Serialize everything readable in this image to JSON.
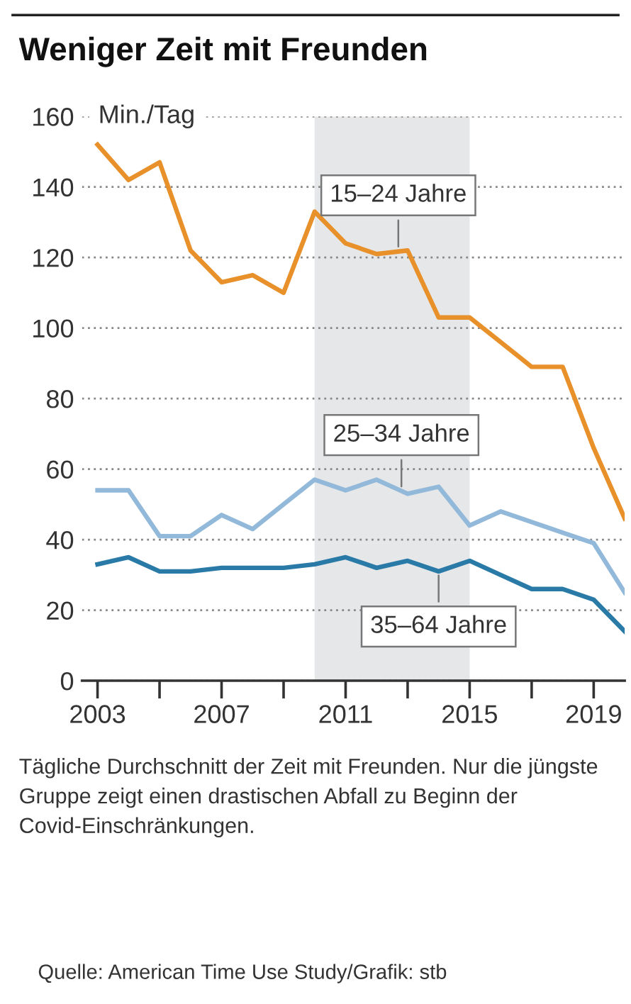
{
  "chart_data": {
    "type": "line",
    "title": "Weniger Zeit mit Freunden",
    "ylabel": "Min./Tag",
    "x": [
      2003,
      2004,
      2005,
      2006,
      2007,
      2008,
      2009,
      2010,
      2011,
      2012,
      2013,
      2014,
      2015,
      2016,
      2017,
      2018,
      2019,
      2020
    ],
    "series": [
      {
        "color": "#e8902a",
        "values": [
          152,
          142,
          147,
          122,
          113,
          115,
          110,
          133,
          124,
          121,
          122,
          103,
          103,
          96,
          89,
          89,
          66,
          46
        ]
      },
      {
        "color": "#92b9d9",
        "values": [
          54,
          54,
          41,
          41,
          47,
          43,
          50,
          57,
          54,
          57,
          53,
          55,
          44,
          48,
          45,
          42,
          39,
          25
        ]
      },
      {
        "color": "#2a7aa8",
        "values": [
          33,
          35,
          31,
          31,
          32,
          32,
          32,
          33,
          35,
          32,
          34,
          31,
          34,
          30,
          26,
          26,
          23,
          14
        ]
      }
    ],
    "xlim": [
      2002.5,
      2020
    ],
    "xticks": [
      2003,
      {
        "value": 2005,
        "label": null
      },
      2007,
      {
        "value": 2009,
        "label": null
      },
      2011,
      {
        "value": 2013,
        "label": null
      },
      2015,
      {
        "value": 2017,
        "label": null
      },
      2019
    ],
    "ylim": [
      0,
      160
    ],
    "yticks": [
      0,
      20,
      40,
      60,
      80,
      100,
      120,
      140,
      160
    ],
    "grid": "y",
    "marker": "none",
    "line_style": "solid",
    "bands": [
      {
        "axis": "x",
        "from": 2010,
        "to": 2015,
        "color": "#e6e7e9"
      }
    ],
    "annotations": [
      {
        "text": "15–24 Jahre",
        "x": 2012.7,
        "y": 122
      },
      {
        "text": "25–34 Jahre",
        "x": 2012.8,
        "y": 54
      },
      {
        "text": "35–64 Jahre",
        "x": 2014,
        "y": 31
      },
      "Tägliche Durchschnitt der Zeit mit Freunden. Nur die jüngste Gruppe zeigt einen drastischen Abfall zu Beginn der Covid-Einschränkungen.",
      "Quelle: American Time Use Study/Grafik: stb"
    ]
  }
}
